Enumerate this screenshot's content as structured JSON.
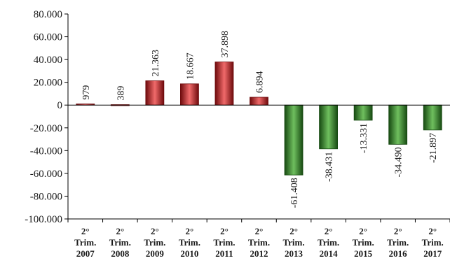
{
  "chart_data": {
    "type": "bar",
    "categories": [
      [
        "2°",
        "Trim.",
        "2007"
      ],
      [
        "2°",
        "Trim.",
        "2008"
      ],
      [
        "2°",
        "Trim.",
        "2009"
      ],
      [
        "2°",
        "Trim.",
        "2010"
      ],
      [
        "2°",
        "Trim.",
        "2011"
      ],
      [
        "2°",
        "Trim.",
        "2012"
      ],
      [
        "2°",
        "Trim.",
        "2013"
      ],
      [
        "2°",
        "Trim.",
        "2014"
      ],
      [
        "2°",
        "Trim.",
        "2015"
      ],
      [
        "2°",
        "Trim.",
        "2016"
      ],
      [
        "2°",
        "Trim.",
        "2017"
      ]
    ],
    "values": [
      979,
      389,
      21363,
      18667,
      37898,
      6894,
      -61408,
      -38431,
      -13331,
      -34490,
      -21897
    ],
    "data_labels": [
      "979",
      "389",
      "21.363",
      "18.667",
      "37.898",
      "6.894",
      "-61.408",
      "-38.431",
      "-13.331",
      "-34.490",
      "-21.897"
    ],
    "ylim": [
      -100000,
      80000
    ],
    "yticks": [
      80000,
      60000,
      40000,
      20000,
      0,
      -20000,
      -40000,
      -60000,
      -80000,
      -100000
    ],
    "ytick_labels": [
      "80.000",
      "60.000",
      "40.000",
      "20.000",
      "0",
      "-20.000",
      "-40.000",
      "-60.000",
      "-80.000",
      "-100.000"
    ],
    "title": "",
    "xlabel": "",
    "ylabel": "",
    "grid": false,
    "legend": "none",
    "colors": {
      "positive": "#c0161b",
      "positive_light": "#f06a6a",
      "positive_dark": "#6e0a0c",
      "negative": "#2c7a24",
      "negative_light": "#6fbf5e",
      "negative_dark": "#174a12",
      "axis": "#000000"
    }
  }
}
